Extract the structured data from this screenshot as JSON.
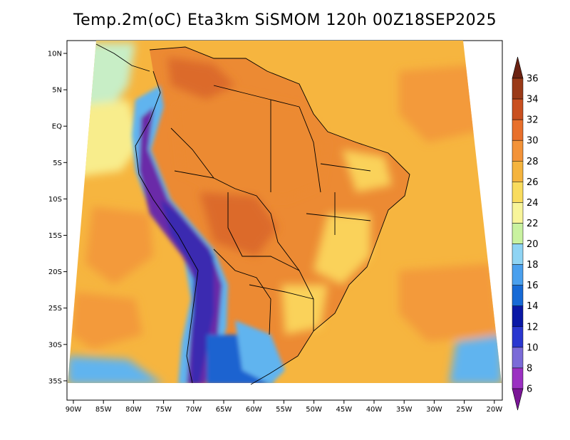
{
  "title": "Temp.2m(oC) Eta3km SiSMOM 120h 00Z18SEP2025",
  "lat_labels": [
    "10N",
    "5N",
    "EQ",
    "5S",
    "10S",
    "15S",
    "20S",
    "25S",
    "30S",
    "35S"
  ],
  "lon_labels": [
    "90W",
    "85W",
    "80W",
    "75W",
    "70W",
    "65W",
    "60W",
    "55W",
    "50W",
    "45W",
    "40W",
    "35W",
    "30W",
    "25W",
    "20W"
  ],
  "colorbar": {
    "labels": [
      "6",
      "8",
      "10",
      "12",
      "14",
      "16",
      "18",
      "20",
      "22",
      "24",
      "26",
      "28",
      "30",
      "32",
      "34",
      "36"
    ],
    "colors": [
      "#7a1596",
      "#9b31c2",
      "#7b6bd8",
      "#2a37d0",
      "#0a18a6",
      "#176ad6",
      "#4aa0ee",
      "#8fd4f4",
      "#c9f2a0",
      "#f8f59a",
      "#f9dc5e",
      "#f5b43e",
      "#f39339",
      "#e8702c",
      "#c95020",
      "#9a3a18",
      "#6b2212"
    ]
  },
  "map": {
    "region": "South America",
    "colors": {
      "ocean_warm": "#f6b53f",
      "ocean_hot": "#f39a3a",
      "land_hot": "#ec8a33",
      "land_very_hot": "#dc6a2a",
      "cool_plateau": "#fad25a",
      "andes_cold": "#6a2aa8",
      "andes_colder": "#3b2ab0",
      "south_cold": "#1a64d0",
      "south_cool": "#61b4ef",
      "pacific_cool": "#c8eec6",
      "pacific_mild": "#f8ed8c"
    }
  }
}
